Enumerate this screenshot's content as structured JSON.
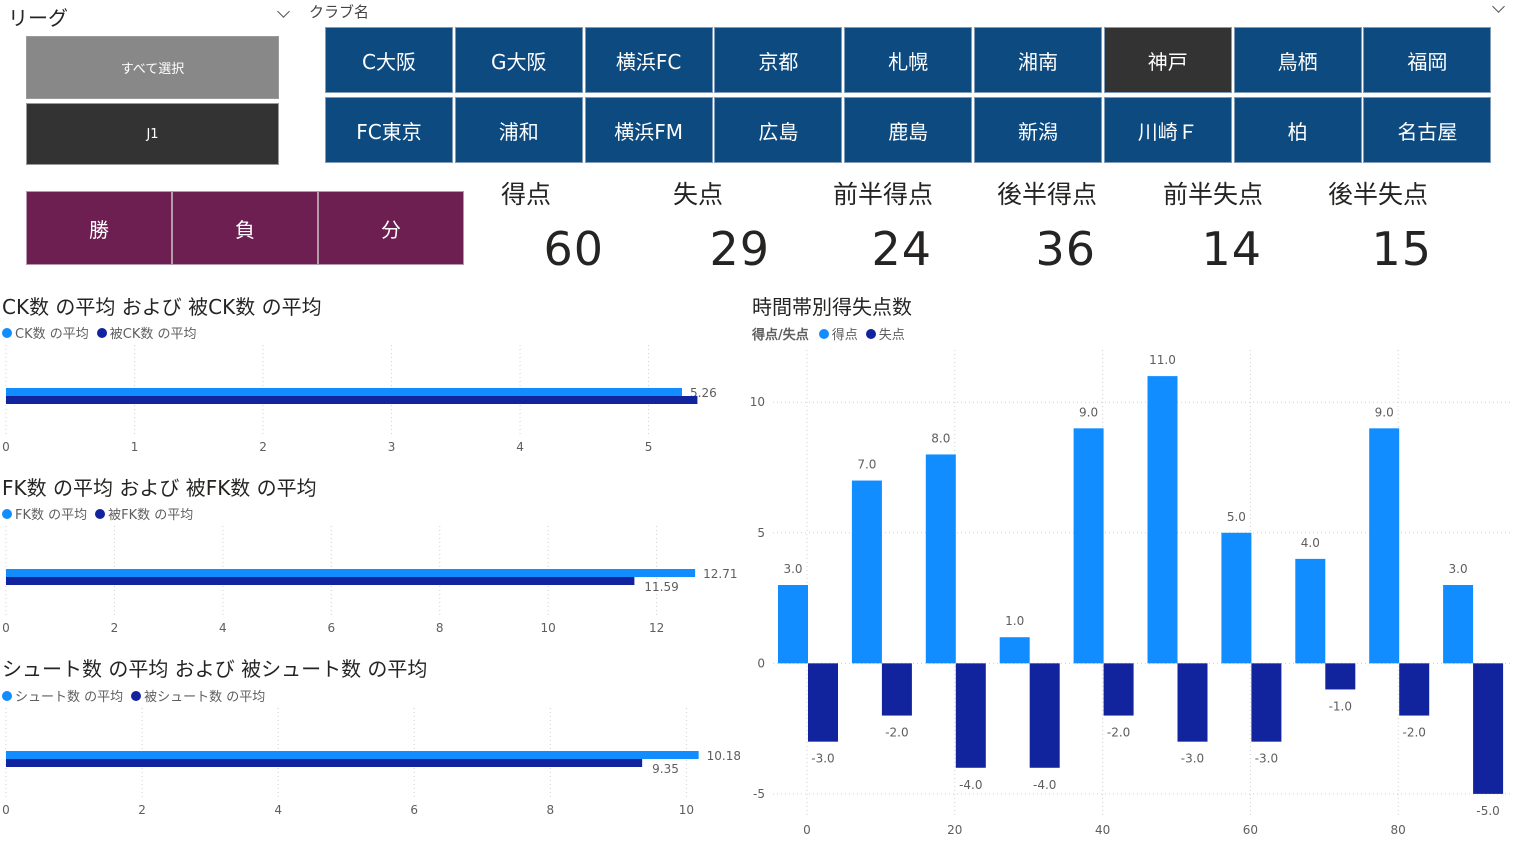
{
  "colors": {
    "series_primary": "#118dff",
    "series_secondary": "#12239e",
    "club_button": "#0c4a80",
    "club_button_active": "#333333",
    "result_button": "#6e1f52",
    "select_all_button": "#888888",
    "j1_button": "#333333"
  },
  "league_slicer": {
    "title": "リーグ",
    "select_all_label": "すべて選択",
    "j1_label": "J1"
  },
  "club_slicer": {
    "title": "クラブ名",
    "clubs": [
      {
        "label": "C大阪",
        "active": false
      },
      {
        "label": "G大阪",
        "active": false
      },
      {
        "label": "横浜FC",
        "active": false
      },
      {
        "label": "京都",
        "active": false
      },
      {
        "label": "札幌",
        "active": false
      },
      {
        "label": "湘南",
        "active": false
      },
      {
        "label": "神戸",
        "active": true
      },
      {
        "label": "鳥栖",
        "active": false
      },
      {
        "label": "福岡",
        "active": false
      },
      {
        "label": "FC東京",
        "active": false
      },
      {
        "label": "浦和",
        "active": false
      },
      {
        "label": "横浜FM",
        "active": false
      },
      {
        "label": "広島",
        "active": false
      },
      {
        "label": "鹿島",
        "active": false
      },
      {
        "label": "新潟",
        "active": false
      },
      {
        "label": "川崎Ｆ",
        "active": false
      },
      {
        "label": "柏",
        "active": false
      },
      {
        "label": "名古屋",
        "active": false
      }
    ]
  },
  "result_slicer": {
    "buttons": [
      "勝",
      "負",
      "分"
    ]
  },
  "kpis": [
    {
      "label": "得点",
      "value": "60"
    },
    {
      "label": "失点",
      "value": "29"
    },
    {
      "label": "前半得点",
      "value": "24"
    },
    {
      "label": "後半得点",
      "value": "36"
    },
    {
      "label": "前半失点",
      "value": "14"
    },
    {
      "label": "後半失点",
      "value": "15"
    }
  ],
  "chart_data": [
    {
      "type": "bar",
      "orientation": "horizontal",
      "title": "CK数 の平均 および 被CK数 の平均",
      "series": [
        {
          "name": "CK数 の平均",
          "values": [
            5.26
          ],
          "data_label": "5.26"
        },
        {
          "name": "被CK数 の平均",
          "values": [
            5.38
          ]
        }
      ],
      "xlim": [
        0,
        5.4
      ],
      "ticks": [
        "0",
        "1",
        "2",
        "3",
        "4",
        "5"
      ],
      "tick_values": [
        0,
        1,
        2,
        3,
        4,
        5
      ],
      "legend": "top-left",
      "grid": true
    },
    {
      "type": "bar",
      "orientation": "horizontal",
      "title": "FK数 の平均 および 被FK数 の平均",
      "series": [
        {
          "name": "FK数 の平均",
          "values": [
            12.71
          ],
          "data_label": "12.71"
        },
        {
          "name": "被FK数 の平均",
          "values": [
            11.59
          ],
          "data_label": "11.59"
        }
      ],
      "xlim": [
        0,
        12.8
      ],
      "ticks": [
        "0",
        "2",
        "4",
        "6",
        "8",
        "10",
        "12"
      ],
      "tick_values": [
        0,
        2,
        4,
        6,
        8,
        10,
        12
      ],
      "legend": "top-left",
      "grid": true
    },
    {
      "type": "bar",
      "orientation": "horizontal",
      "title": "シュート数 の平均 および 被シュート数 の平均",
      "series": [
        {
          "name": "シュート数 の平均",
          "values": [
            10.18
          ],
          "data_label": "10.18"
        },
        {
          "name": "被シュート数 の平均",
          "values": [
            9.35
          ],
          "data_label": "9.35"
        }
      ],
      "xlim": [
        0,
        10.2
      ],
      "ticks": [
        "0",
        "2",
        "4",
        "6",
        "8",
        "10"
      ],
      "tick_values": [
        0,
        2,
        4,
        6,
        8,
        10
      ],
      "legend": "top-left",
      "grid": true
    },
    {
      "type": "bar",
      "orientation": "vertical",
      "title": "時間帯別得失点数",
      "legend_title": "得点/失点",
      "x": [
        0,
        10,
        20,
        30,
        40,
        50,
        60,
        70,
        80,
        90
      ],
      "series": [
        {
          "name": "得点",
          "values": [
            3,
            7,
            8,
            1,
            9,
            11,
            5,
            4,
            9,
            3
          ],
          "labels": [
            "3.0",
            "7.0",
            "8.0",
            "1.0",
            "9.0",
            "11.0",
            "5.0",
            "4.0",
            "9.0",
            "3.0"
          ]
        },
        {
          "name": "失点",
          "values": [
            -3,
            -2,
            -4,
            -4,
            -2,
            -3,
            -3,
            -1,
            -2,
            -5
          ],
          "labels": [
            "-3.0",
            "-2.0",
            "-4.0",
            "-4.0",
            "-2.0",
            "-3.0",
            "-3.0",
            "-1.0",
            "-2.0",
            "-5.0"
          ]
        }
      ],
      "ylim": [
        -6,
        12
      ],
      "y_ticks": [
        "10",
        "5",
        "0",
        "-5"
      ],
      "y_tick_values": [
        10,
        5,
        0,
        -5
      ],
      "x_ticks": [
        "0",
        "20",
        "40",
        "60",
        "80"
      ],
      "x_tick_values": [
        0,
        20,
        40,
        60,
        80
      ],
      "legend": "top-left",
      "grid": true
    }
  ]
}
